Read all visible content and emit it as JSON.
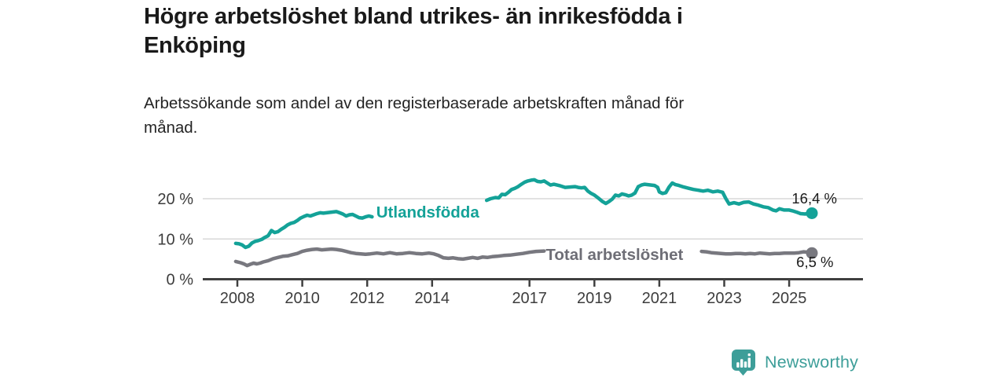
{
  "page": {
    "title_lines": [
      "Högre arbetslöshet bland utrikes- än inrikesfödda i",
      "Enköping"
    ],
    "subtitle_lines": [
      "Arbetssökande som andel av den registerbaserade arbetskraften månad för",
      "månad."
    ]
  },
  "branding": {
    "logo_text": "Newsworthy",
    "logo_icon": "bar-chart-speech-bubble-icon",
    "logo_color": "#3d9e99"
  },
  "chart_data": {
    "type": "line",
    "unit": "%",
    "grid": "horizontal-only",
    "x_axis": {
      "ticks": [
        {
          "label": "2008",
          "year": 2008
        },
        {
          "label": "2010",
          "year": 2010
        },
        {
          "label": "2012",
          "year": 2012
        },
        {
          "label": "2014",
          "year": 2014
        },
        {
          "label": "2017",
          "year": 2017
        },
        {
          "label": "2019",
          "year": 2019
        },
        {
          "label": "2021",
          "year": 2021
        },
        {
          "label": "2023",
          "year": 2023
        },
        {
          "label": "2025",
          "year": 2025
        }
      ]
    },
    "y_axis": {
      "ticks": [
        {
          "label": "0 %",
          "value": 0
        },
        {
          "label": "10 %",
          "value": 10
        },
        {
          "label": "20 %",
          "value": 20
        }
      ],
      "range": [
        0,
        26
      ]
    },
    "series": [
      {
        "name": "Utlandsfödda",
        "color": "#14a298",
        "end_value_label": "16,4 %",
        "last_value": 16.4,
        "inline_label": {
          "text": "Utlandsfödda",
          "year": 2012.28,
          "pct": 15.3
        },
        "end_label_anchor": {
          "year": 2025.08,
          "pct": 18.85
        },
        "segments": [
          [
            [
              2007.95,
              8.9
            ],
            [
              2008.05,
              8.8
            ],
            [
              2008.15,
              8.5
            ],
            [
              2008.25,
              7.9
            ],
            [
              2008.35,
              8.2
            ],
            [
              2008.45,
              9.0
            ],
            [
              2008.55,
              9.4
            ],
            [
              2008.65,
              9.6
            ],
            [
              2008.75,
              9.9
            ],
            [
              2008.85,
              10.4
            ],
            [
              2008.95,
              10.8
            ],
            [
              2009.05,
              12.1
            ],
            [
              2009.15,
              11.6
            ],
            [
              2009.25,
              11.8
            ],
            [
              2009.35,
              12.4
            ],
            [
              2009.45,
              12.9
            ],
            [
              2009.55,
              13.5
            ],
            [
              2009.65,
              13.9
            ],
            [
              2009.75,
              14.1
            ],
            [
              2009.85,
              14.6
            ],
            [
              2009.95,
              15.2
            ],
            [
              2010.05,
              15.6
            ],
            [
              2010.15,
              15.9
            ],
            [
              2010.25,
              15.7
            ],
            [
              2010.35,
              16.0
            ],
            [
              2010.45,
              16.3
            ],
            [
              2010.55,
              16.5
            ],
            [
              2010.65,
              16.4
            ],
            [
              2010.75,
              16.5
            ],
            [
              2010.85,
              16.6
            ],
            [
              2010.95,
              16.7
            ],
            [
              2011.05,
              16.8
            ],
            [
              2011.15,
              16.5
            ],
            [
              2011.25,
              16.2
            ],
            [
              2011.35,
              15.7
            ],
            [
              2011.45,
              16.0
            ],
            [
              2011.55,
              16.1
            ],
            [
              2011.65,
              15.7
            ],
            [
              2011.75,
              15.3
            ],
            [
              2011.85,
              15.2
            ],
            [
              2011.95,
              15.5
            ],
            [
              2012.05,
              15.7
            ],
            [
              2012.15,
              15.5
            ]
          ],
          [
            [
              2015.68,
              19.6
            ],
            [
              2015.8,
              20.0
            ],
            [
              2015.95,
              20.3
            ],
            [
              2016.05,
              20.2
            ],
            [
              2016.15,
              21.1
            ],
            [
              2016.25,
              21.0
            ],
            [
              2016.35,
              21.6
            ],
            [
              2016.45,
              22.3
            ],
            [
              2016.55,
              22.6
            ],
            [
              2016.65,
              23.0
            ],
            [
              2016.75,
              23.6
            ],
            [
              2016.85,
              24.1
            ],
            [
              2016.95,
              24.4
            ],
            [
              2017.05,
              24.6
            ],
            [
              2017.15,
              24.7
            ],
            [
              2017.25,
              24.3
            ],
            [
              2017.35,
              24.2
            ],
            [
              2017.45,
              24.4
            ],
            [
              2017.55,
              23.9
            ],
            [
              2017.65,
              23.4
            ],
            [
              2017.75,
              23.6
            ],
            [
              2017.85,
              23.4
            ],
            [
              2017.95,
              23.2
            ],
            [
              2018.1,
              22.8
            ],
            [
              2018.25,
              22.9
            ],
            [
              2018.4,
              23.0
            ],
            [
              2018.5,
              22.8
            ],
            [
              2018.6,
              22.7
            ],
            [
              2018.7,
              22.8
            ],
            [
              2018.8,
              21.9
            ],
            [
              2018.9,
              21.3
            ],
            [
              2019.0,
              20.9
            ],
            [
              2019.1,
              20.3
            ],
            [
              2019.25,
              19.3
            ],
            [
              2019.35,
              18.8
            ],
            [
              2019.45,
              19.3
            ],
            [
              2019.55,
              19.9
            ],
            [
              2019.65,
              20.9
            ],
            [
              2019.75,
              20.7
            ],
            [
              2019.85,
              21.2
            ],
            [
              2019.95,
              21.0
            ],
            [
              2020.05,
              20.7
            ],
            [
              2020.15,
              20.9
            ],
            [
              2020.25,
              21.4
            ],
            [
              2020.35,
              23.0
            ],
            [
              2020.45,
              23.4
            ],
            [
              2020.55,
              23.6
            ],
            [
              2020.65,
              23.5
            ],
            [
              2020.75,
              23.4
            ],
            [
              2020.85,
              23.3
            ],
            [
              2020.95,
              22.8
            ],
            [
              2021.0,
              21.7
            ],
            [
              2021.1,
              21.3
            ],
            [
              2021.2,
              21.5
            ],
            [
              2021.3,
              22.9
            ],
            [
              2021.4,
              23.9
            ],
            [
              2021.5,
              23.5
            ],
            [
              2021.6,
              23.3
            ],
            [
              2021.75,
              22.9
            ],
            [
              2021.9,
              22.6
            ],
            [
              2022.05,
              22.3
            ],
            [
              2022.2,
              22.1
            ],
            [
              2022.35,
              21.9
            ],
            [
              2022.5,
              22.1
            ],
            [
              2022.65,
              21.7
            ],
            [
              2022.8,
              21.9
            ],
            [
              2022.95,
              21.6
            ],
            [
              2023.05,
              20.0
            ],
            [
              2023.15,
              18.7
            ],
            [
              2023.3,
              19.0
            ],
            [
              2023.45,
              18.7
            ],
            [
              2023.6,
              19.1
            ],
            [
              2023.75,
              19.2
            ],
            [
              2023.9,
              18.7
            ],
            [
              2024.05,
              18.4
            ],
            [
              2024.2,
              18.0
            ],
            [
              2024.35,
              17.8
            ],
            [
              2024.5,
              17.2
            ],
            [
              2024.6,
              17.0
            ],
            [
              2024.7,
              17.5
            ],
            [
              2024.85,
              17.2
            ],
            [
              2025.0,
              17.2
            ],
            [
              2025.1,
              17.0
            ],
            [
              2025.25,
              16.6
            ],
            [
              2025.35,
              16.3
            ],
            [
              2025.5,
              16.2
            ],
            [
              2025.6,
              16.5
            ],
            [
              2025.7,
              16.4
            ]
          ]
        ]
      },
      {
        "name": "Total arbetslöshet",
        "color": "#78787f",
        "label_color": "#6e6e76",
        "end_value_label": "6,5 %",
        "last_value": 6.5,
        "inline_label": {
          "text": "Total arbetslöshet",
          "year": 2017.5,
          "pct": 4.75
        },
        "end_label_anchor": {
          "year": 2025.22,
          "pct": 3.0
        },
        "segments": [
          [
            [
              2007.95,
              4.4
            ],
            [
              2008.1,
              4.1
            ],
            [
              2008.2,
              3.8
            ],
            [
              2008.3,
              3.4
            ],
            [
              2008.4,
              3.7
            ],
            [
              2008.5,
              4.0
            ],
            [
              2008.6,
              3.8
            ],
            [
              2008.7,
              4.0
            ],
            [
              2008.8,
              4.3
            ],
            [
              2008.95,
              4.6
            ],
            [
              2009.1,
              5.1
            ],
            [
              2009.25,
              5.4
            ],
            [
              2009.4,
              5.7
            ],
            [
              2009.55,
              5.8
            ],
            [
              2009.7,
              6.1
            ],
            [
              2009.85,
              6.4
            ],
            [
              2010.0,
              6.9
            ],
            [
              2010.15,
              7.2
            ],
            [
              2010.3,
              7.4
            ],
            [
              2010.45,
              7.5
            ],
            [
              2010.6,
              7.3
            ],
            [
              2010.75,
              7.4
            ],
            [
              2010.9,
              7.5
            ],
            [
              2011.05,
              7.4
            ],
            [
              2011.2,
              7.2
            ],
            [
              2011.35,
              6.9
            ],
            [
              2011.5,
              6.6
            ],
            [
              2011.65,
              6.4
            ],
            [
              2011.8,
              6.3
            ],
            [
              2011.95,
              6.2
            ],
            [
              2012.1,
              6.3
            ],
            [
              2012.3,
              6.5
            ],
            [
              2012.5,
              6.3
            ],
            [
              2012.7,
              6.6
            ],
            [
              2012.9,
              6.3
            ],
            [
              2013.1,
              6.4
            ],
            [
              2013.3,
              6.6
            ],
            [
              2013.5,
              6.4
            ],
            [
              2013.7,
              6.3
            ],
            [
              2013.9,
              6.5
            ],
            [
              2014.05,
              6.3
            ],
            [
              2014.2,
              5.9
            ],
            [
              2014.35,
              5.3
            ],
            [
              2014.5,
              5.2
            ],
            [
              2014.65,
              5.3
            ],
            [
              2014.8,
              5.1
            ],
            [
              2014.95,
              5.0
            ],
            [
              2015.1,
              5.2
            ],
            [
              2015.25,
              5.4
            ],
            [
              2015.4,
              5.2
            ],
            [
              2015.55,
              5.5
            ],
            [
              2015.7,
              5.4
            ],
            [
              2015.85,
              5.6
            ],
            [
              2016.0,
              5.7
            ],
            [
              2016.2,
              5.9
            ],
            [
              2016.4,
              6.0
            ],
            [
              2016.6,
              6.2
            ],
            [
              2016.8,
              6.4
            ],
            [
              2017.0,
              6.7
            ],
            [
              2017.2,
              6.9
            ],
            [
              2017.45,
              7.0
            ]
          ],
          [
            [
              2022.3,
              6.9
            ],
            [
              2022.45,
              6.8
            ],
            [
              2022.6,
              6.6
            ],
            [
              2022.75,
              6.5
            ],
            [
              2022.9,
              6.4
            ],
            [
              2023.05,
              6.3
            ],
            [
              2023.2,
              6.3
            ],
            [
              2023.35,
              6.4
            ],
            [
              2023.5,
              6.4
            ],
            [
              2023.65,
              6.3
            ],
            [
              2023.8,
              6.4
            ],
            [
              2023.95,
              6.3
            ],
            [
              2024.1,
              6.5
            ],
            [
              2024.25,
              6.4
            ],
            [
              2024.4,
              6.3
            ],
            [
              2024.55,
              6.4
            ],
            [
              2024.7,
              6.4
            ],
            [
              2024.85,
              6.5
            ],
            [
              2025.0,
              6.5
            ],
            [
              2025.15,
              6.5
            ],
            [
              2025.3,
              6.6
            ],
            [
              2025.45,
              6.8
            ],
            [
              2025.6,
              6.7
            ],
            [
              2025.7,
              6.5
            ]
          ]
        ]
      }
    ]
  }
}
